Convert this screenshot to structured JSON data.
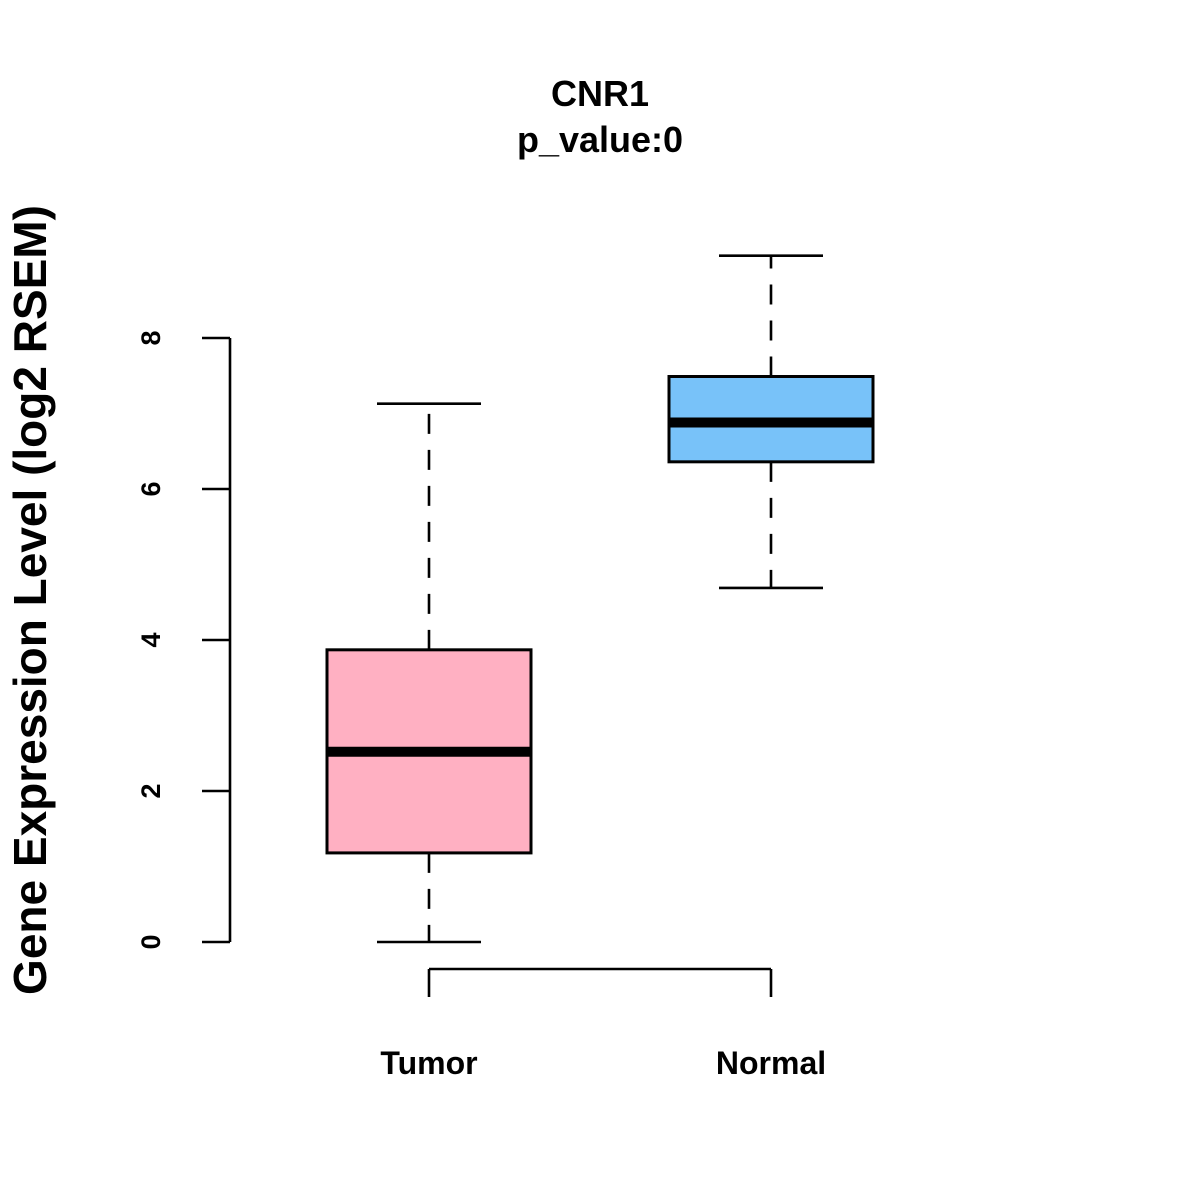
{
  "chart_data": {
    "type": "box",
    "title": "CNR1",
    "subtitle": "p_value:0",
    "xlabel": "",
    "ylabel": "Gene Expression Level (log2 RSEM)",
    "ylim": [
      0,
      8
    ],
    "yticks": [
      "0",
      "2",
      "4",
      "6",
      "8"
    ],
    "categories": [
      "Tumor",
      "Normal"
    ],
    "series": [
      {
        "name": "Tumor",
        "min": 0.0,
        "q1": 1.18,
        "median": 2.52,
        "q3": 3.87,
        "max": 7.13,
        "color": "#FFB0C2"
      },
      {
        "name": "Normal",
        "min": 4.69,
        "q1": 6.36,
        "median": 6.88,
        "q3": 7.49,
        "max": 9.09,
        "color": "#78C2F9"
      }
    ],
    "grid": false,
    "legend": "none"
  }
}
